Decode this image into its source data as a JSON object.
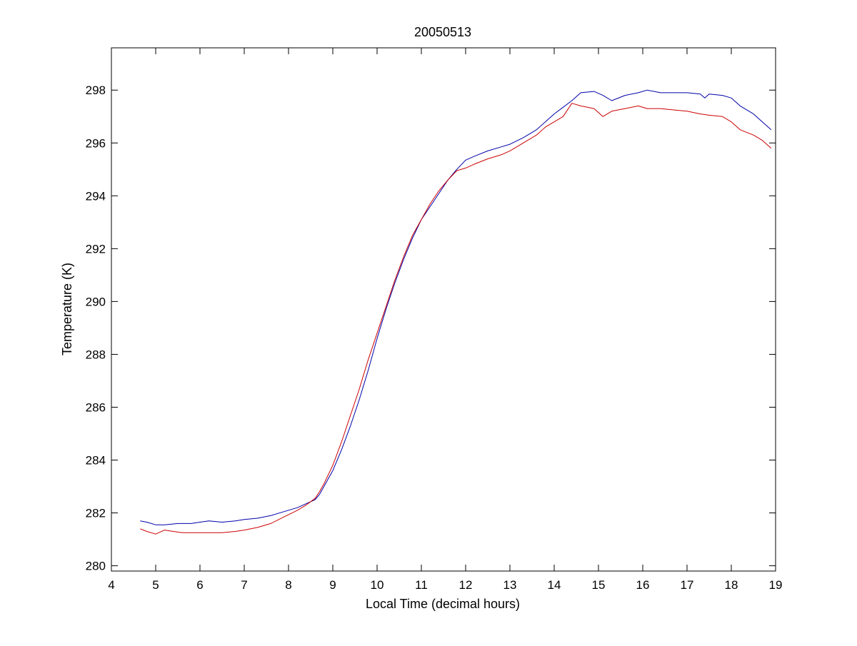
{
  "chart_data": {
    "type": "line",
    "title": "20050513",
    "xlabel": "Local Time (decimal hours)",
    "ylabel": "Temperature (K)",
    "xlim": [
      4,
      19
    ],
    "ylim": [
      279.8,
      299.6
    ],
    "xticks": [
      4,
      5,
      6,
      7,
      8,
      9,
      10,
      11,
      12,
      13,
      14,
      15,
      16,
      17,
      18,
      19
    ],
    "yticks": [
      280,
      282,
      284,
      286,
      288,
      290,
      292,
      294,
      296,
      298
    ],
    "grid": false,
    "legend": "none",
    "series": [
      {
        "color": "#0000aa",
        "x": [
          4.65,
          4.8,
          5.0,
          5.2,
          5.5,
          5.8,
          6.0,
          6.2,
          6.5,
          6.8,
          7.0,
          7.3,
          7.6,
          7.9,
          8.2,
          8.4,
          8.6,
          8.7,
          8.8,
          9.0,
          9.2,
          9.4,
          9.6,
          9.8,
          10.0,
          10.2,
          10.4,
          10.6,
          10.8,
          11.0,
          11.2,
          11.4,
          11.6,
          11.8,
          12.0,
          12.2,
          12.5,
          12.8,
          13.0,
          13.3,
          13.6,
          13.8,
          14.0,
          14.2,
          14.4,
          14.6,
          14.9,
          15.1,
          15.3,
          15.6,
          15.9,
          16.1,
          16.4,
          16.7,
          17.0,
          17.3,
          17.4,
          17.5,
          17.8,
          18.0,
          18.2,
          18.5,
          18.7,
          18.9
        ],
        "y": [
          281.7,
          281.65,
          281.55,
          281.55,
          281.6,
          281.6,
          281.65,
          281.7,
          281.65,
          281.7,
          281.75,
          281.8,
          281.9,
          282.05,
          282.2,
          282.35,
          282.5,
          282.7,
          283.0,
          283.6,
          284.4,
          285.3,
          286.3,
          287.4,
          288.6,
          289.7,
          290.7,
          291.6,
          292.4,
          293.1,
          293.6,
          294.1,
          294.6,
          295.0,
          295.35,
          295.5,
          295.7,
          295.85,
          295.95,
          296.2,
          296.5,
          296.8,
          297.1,
          297.35,
          297.6,
          297.9,
          297.95,
          297.8,
          297.6,
          297.8,
          297.9,
          298.0,
          297.9,
          297.9,
          297.9,
          297.85,
          297.7,
          297.85,
          297.8,
          297.7,
          297.4,
          297.1,
          296.8,
          296.5
        ]
      },
      {
        "color": "#cc0000",
        "x": [
          4.65,
          4.8,
          5.0,
          5.2,
          5.4,
          5.6,
          5.8,
          6.0,
          6.3,
          6.5,
          6.8,
          7.0,
          7.3,
          7.6,
          7.9,
          8.2,
          8.4,
          8.6,
          8.7,
          8.8,
          9.0,
          9.2,
          9.4,
          9.6,
          9.8,
          10.0,
          10.2,
          10.4,
          10.6,
          10.8,
          11.0,
          11.2,
          11.4,
          11.6,
          11.8,
          12.0,
          12.2,
          12.5,
          12.8,
          13.0,
          13.3,
          13.6,
          13.8,
          14.0,
          14.2,
          14.4,
          14.6,
          14.9,
          15.1,
          15.3,
          15.6,
          15.9,
          16.1,
          16.4,
          16.7,
          17.0,
          17.3,
          17.5,
          17.8,
          18.0,
          18.2,
          18.5,
          18.7,
          18.9
        ],
        "y": [
          281.4,
          281.3,
          281.2,
          281.35,
          281.3,
          281.25,
          281.25,
          281.25,
          281.25,
          281.25,
          281.3,
          281.35,
          281.45,
          281.6,
          281.85,
          282.1,
          282.3,
          282.55,
          282.8,
          283.1,
          283.8,
          284.7,
          285.7,
          286.7,
          287.8,
          288.8,
          289.8,
          290.8,
          291.7,
          292.5,
          293.1,
          293.7,
          294.2,
          294.6,
          294.95,
          295.05,
          295.2,
          295.4,
          295.55,
          295.7,
          296.0,
          296.3,
          296.6,
          296.8,
          297.0,
          297.5,
          297.4,
          297.3,
          297.0,
          297.2,
          297.3,
          297.4,
          297.3,
          297.3,
          297.25,
          297.2,
          297.1,
          297.05,
          297.0,
          296.8,
          296.5,
          296.3,
          296.1,
          295.8
        ]
      }
    ]
  }
}
